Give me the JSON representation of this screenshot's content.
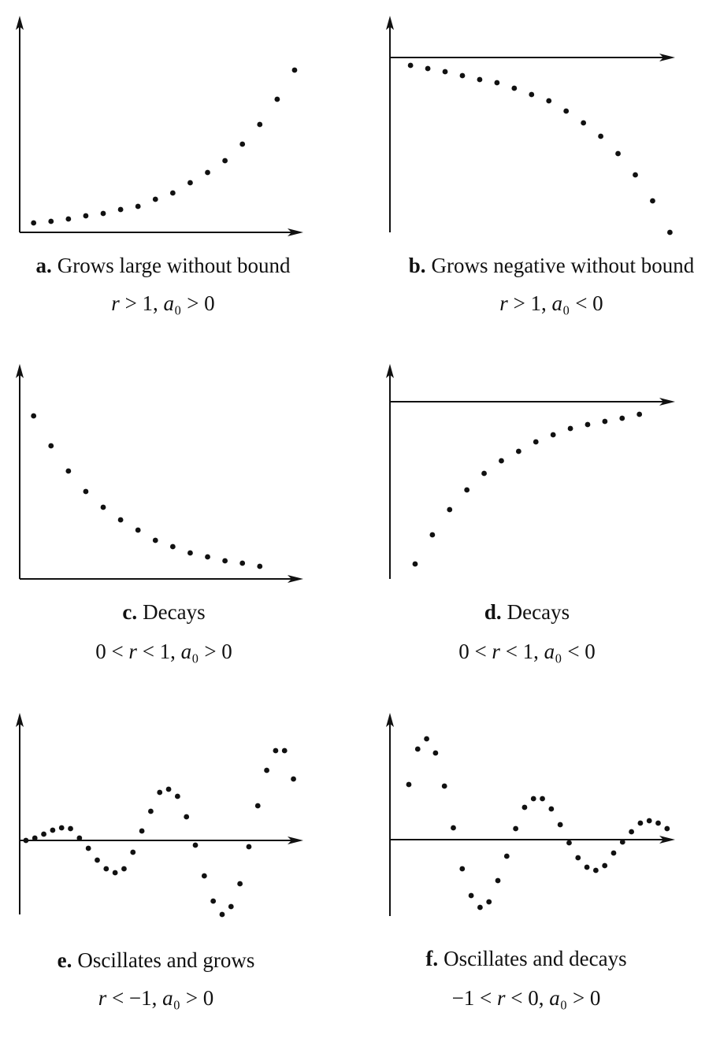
{
  "chart_data": [
    {
      "type": "scatter",
      "label": "a.",
      "title": "Grows large without bound",
      "subtitle": "r > 1,  a₀ > 0",
      "x": [
        1,
        2,
        3,
        4,
        5,
        6,
        7,
        8,
        9,
        10,
        11,
        12,
        13,
        14,
        15,
        16
      ],
      "values": [
        1.2,
        1.4,
        1.7,
        2.1,
        2.4,
        2.9,
        3.3,
        4.2,
        5.0,
        6.3,
        7.6,
        9.1,
        11.2,
        13.7,
        16.9,
        20.6
      ],
      "xlim": [
        0.2,
        16.5
      ],
      "ylim": [
        0,
        27.5
      ],
      "color": "#111111"
    },
    {
      "type": "scatter",
      "label": "b.",
      "title": "Grows negative without bound",
      "subtitle": "r > 1,  a₀ < 0",
      "x": [
        1,
        2,
        3,
        4,
        5,
        6,
        7,
        8,
        9,
        10,
        11,
        12,
        13,
        14,
        15,
        16
      ],
      "values": [
        -1.0,
        -1.4,
        -1.8,
        -2.3,
        -2.8,
        -3.2,
        -3.9,
        -4.7,
        -5.5,
        -6.8,
        -8.3,
        -10.0,
        -12.2,
        -14.9,
        -18.2,
        -22.2
      ],
      "xlim": [
        -0.19,
        16.3
      ],
      "ylim": [
        -22.2,
        5.3
      ],
      "color": "#111111"
    },
    {
      "type": "scatter",
      "label": "c.",
      "title": "Decays",
      "subtitle": "0 < r < 1,  a₀ > 0",
      "x": [
        1,
        2,
        3,
        4,
        5,
        6,
        7,
        8,
        9,
        10,
        11,
        12,
        13,
        14
      ],
      "values": [
        20.7,
        16.9,
        13.7,
        11.1,
        9.1,
        7.5,
        6.2,
        4.9,
        4.1,
        3.3,
        2.8,
        2.3,
        2.0,
        1.6
      ],
      "xlim": [
        0.2,
        16.5
      ],
      "ylim": [
        0,
        27.3
      ],
      "color": "#111111"
    },
    {
      "type": "scatter",
      "label": "d.",
      "title": "Decays",
      "subtitle": "0 < r < 1,  a₀ < 0",
      "x": [
        1,
        2,
        3,
        4,
        5,
        6,
        7,
        8,
        9,
        10,
        11,
        12,
        13,
        14
      ],
      "values": [
        -20.6,
        -16.9,
        -13.7,
        -11.2,
        -9.1,
        -7.5,
        -6.3,
        -5.1,
        -4.2,
        -3.4,
        -2.9,
        -2.5,
        -2.1,
        -1.6
      ],
      "xlim": [
        -0.46,
        16.07
      ],
      "ylim": [
        -22.5,
        4.8
      ],
      "color": "#111111"
    },
    {
      "type": "scatter",
      "label": "e.",
      "title": "Oscillates and grows",
      "subtitle": "r < −1,  a₀ > 0",
      "x": [
        0,
        1,
        2,
        3,
        4,
        5,
        6,
        7,
        8,
        9,
        10,
        11,
        12,
        13,
        14,
        15,
        16,
        17,
        18,
        19,
        20,
        21,
        22,
        23,
        24,
        25,
        26,
        27,
        28,
        29,
        30
      ],
      "values": [
        0,
        0.3,
        0.8,
        1.3,
        1.6,
        1.5,
        0.3,
        -1.0,
        -2.5,
        -3.6,
        -4.1,
        -3.6,
        -1.5,
        1.2,
        3.7,
        6.1,
        6.5,
        5.6,
        3.0,
        -0.6,
        -4.5,
        -7.7,
        -9.4,
        -8.4,
        -5.5,
        -0.8,
        4.4,
        8.9,
        11.4,
        11.4,
        7.8
      ],
      "xlim": [
        -0.7,
        31.1
      ],
      "ylim": [
        -9.4,
        16.2
      ],
      "color": "#111111"
    },
    {
      "type": "scatter",
      "label": "f.",
      "title": "Oscillates and decays",
      "subtitle": "−1 < r < 0,  a₀ > 0",
      "x": [
        1,
        2,
        3,
        4,
        5,
        6,
        7,
        8,
        9,
        10,
        11,
        12,
        13,
        14,
        15,
        16,
        17,
        18,
        19,
        20,
        21,
        22,
        23,
        24,
        25,
        26,
        27,
        28,
        29,
        30
      ],
      "values": [
        7.0,
        11.5,
        12.8,
        11.0,
        6.8,
        1.5,
        -3.7,
        -7.1,
        -8.6,
        -7.9,
        -5.2,
        -2.1,
        1.4,
        4.1,
        5.2,
        5.2,
        3.9,
        1.9,
        -0.4,
        -2.3,
        -3.5,
        -3.9,
        -3.3,
        -1.7,
        -0.3,
        1.0,
        2.1,
        2.4,
        2.1,
        1.4
      ],
      "xlim": [
        -1.12,
        30.9
      ],
      "ylim": [
        -9.7,
        16.1
      ],
      "color": "#111111"
    }
  ]
}
